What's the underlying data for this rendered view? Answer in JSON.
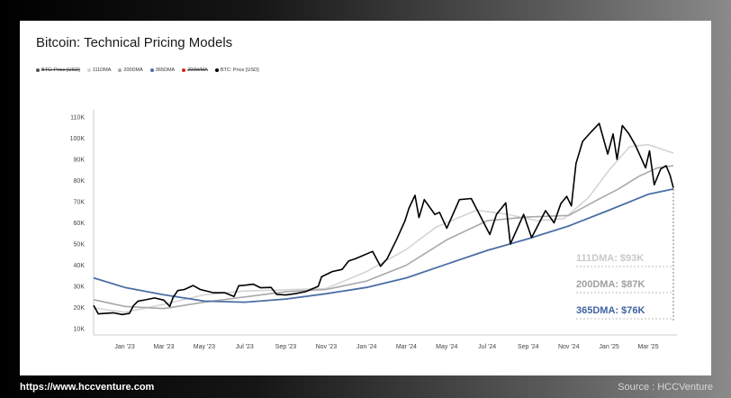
{
  "chart_data": {
    "type": "line",
    "title": "Bitcoin: Technical Pricing Models",
    "legend": [
      {
        "label": "BTC: Price [USD]",
        "color": "#555555",
        "struck": true
      },
      {
        "label": "111DMA",
        "color": "#d4d4d4",
        "struck": false
      },
      {
        "label": "200DMA",
        "color": "#a8a8a8",
        "struck": false
      },
      {
        "label": "365DMA",
        "color": "#4a6fa5",
        "struck": false
      },
      {
        "label": "200WMA",
        "color": "#e02020",
        "struck": true
      },
      {
        "label": "BTC: Price [USD]",
        "color": "#000000",
        "struck": false
      }
    ],
    "y_ticks": [
      "10K",
      "20K",
      "30K",
      "40K",
      "50K",
      "60K",
      "70K",
      "80K",
      "90K",
      "100K",
      "110K"
    ],
    "x_ticks": [
      "Jan '23",
      "Mar '23",
      "May '23",
      "Jul '23",
      "Sep '23",
      "Nov '23",
      "Jan '24",
      "Mar '24",
      "May '24",
      "Jul '24",
      "Sep '24",
      "Nov '24",
      "Jan '25",
      "Mar '25"
    ],
    "ylim": [
      10000,
      110000
    ],
    "xlim": [
      "2022-11-15",
      "2025-04-08"
    ],
    "grid": false,
    "legend_position": "top-left",
    "series": [
      {
        "name": "BTC: Price [USD]",
        "color": "#000000",
        "width": 1.6,
        "points": [
          [
            "2022-11-15",
            21000
          ],
          [
            "2022-11-22",
            17000
          ],
          [
            "2022-12-01",
            17200
          ],
          [
            "2022-12-15",
            17500
          ],
          [
            "2022-12-28",
            16700
          ],
          [
            "2023-01-08",
            17200
          ],
          [
            "2023-01-14",
            20800
          ],
          [
            "2023-01-21",
            23000
          ],
          [
            "2023-02-01",
            23600
          ],
          [
            "2023-02-15",
            24500
          ],
          [
            "2023-03-01",
            23500
          ],
          [
            "2023-03-10",
            20500
          ],
          [
            "2023-03-15",
            24800
          ],
          [
            "2023-03-22",
            28000
          ],
          [
            "2023-04-01",
            28500
          ],
          [
            "2023-04-14",
            30400
          ],
          [
            "2023-04-25",
            28500
          ],
          [
            "2023-05-15",
            27000
          ],
          [
            "2023-06-01",
            27000
          ],
          [
            "2023-06-15",
            25200
          ],
          [
            "2023-06-22",
            30300
          ],
          [
            "2023-07-01",
            30500
          ],
          [
            "2023-07-14",
            31000
          ],
          [
            "2023-07-25",
            29300
          ],
          [
            "2023-08-10",
            29500
          ],
          [
            "2023-08-18",
            26200
          ],
          [
            "2023-09-01",
            25900
          ],
          [
            "2023-09-15",
            26500
          ],
          [
            "2023-10-01",
            27500
          ],
          [
            "2023-10-20",
            30000
          ],
          [
            "2023-10-25",
            34500
          ],
          [
            "2023-11-10",
            37000
          ],
          [
            "2023-11-25",
            38000
          ],
          [
            "2023-12-05",
            42000
          ],
          [
            "2023-12-15",
            43000
          ],
          [
            "2024-01-10",
            46500
          ],
          [
            "2024-01-22",
            39500
          ],
          [
            "2024-02-01",
            43000
          ],
          [
            "2024-02-15",
            52000
          ],
          [
            "2024-02-28",
            61000
          ],
          [
            "2024-03-05",
            67000
          ],
          [
            "2024-03-14",
            73000
          ],
          [
            "2024-03-20",
            62500
          ],
          [
            "2024-03-28",
            71000
          ],
          [
            "2024-04-13",
            64000
          ],
          [
            "2024-04-20",
            65000
          ],
          [
            "2024-05-01",
            57500
          ],
          [
            "2024-05-20",
            71000
          ],
          [
            "2024-06-07",
            71500
          ],
          [
            "2024-06-25",
            60500
          ],
          [
            "2024-07-05",
            54500
          ],
          [
            "2024-07-15",
            64000
          ],
          [
            "2024-07-29",
            69500
          ],
          [
            "2024-08-05",
            50000
          ],
          [
            "2024-08-25",
            64000
          ],
          [
            "2024-09-06",
            53000
          ],
          [
            "2024-09-27",
            65800
          ],
          [
            "2024-10-10",
            60000
          ],
          [
            "2024-10-20",
            69000
          ],
          [
            "2024-10-29",
            72500
          ],
          [
            "2024-11-05",
            68000
          ],
          [
            "2024-11-12",
            88000
          ],
          [
            "2024-11-22",
            98500
          ],
          [
            "2024-12-05",
            103000
          ],
          [
            "2024-12-17",
            107000
          ],
          [
            "2024-12-30",
            92500
          ],
          [
            "2025-01-07",
            102000
          ],
          [
            "2025-01-13",
            90000
          ],
          [
            "2025-01-21",
            106000
          ],
          [
            "2025-01-31",
            102000
          ],
          [
            "2025-02-10",
            96500
          ],
          [
            "2025-02-25",
            86000
          ],
          [
            "2025-03-03",
            94000
          ],
          [
            "2025-03-10",
            78000
          ],
          [
            "2025-03-20",
            85500
          ],
          [
            "2025-03-28",
            87000
          ],
          [
            "2025-04-03",
            82500
          ],
          [
            "2025-04-08",
            76500
          ]
        ]
      },
      {
        "name": "111DMA",
        "color": "#d4d4d4",
        "width": 1.6,
        "points": [
          [
            "2022-11-15",
            19800
          ],
          [
            "2023-01-01",
            17800
          ],
          [
            "2023-03-01",
            21500
          ],
          [
            "2023-05-01",
            26000
          ],
          [
            "2023-07-01",
            27800
          ],
          [
            "2023-09-01",
            28400
          ],
          [
            "2023-11-01",
            29000
          ],
          [
            "2024-01-01",
            37000
          ],
          [
            "2024-03-01",
            47500
          ],
          [
            "2024-04-15",
            58000
          ],
          [
            "2024-06-15",
            66000
          ],
          [
            "2024-08-01",
            64000
          ],
          [
            "2024-09-15",
            61000
          ],
          [
            "2024-10-25",
            62000
          ],
          [
            "2024-12-01",
            72000
          ],
          [
            "2025-01-01",
            85000
          ],
          [
            "2025-02-01",
            96000
          ],
          [
            "2025-03-01",
            97000
          ],
          [
            "2025-04-08",
            93000
          ]
        ]
      },
      {
        "name": "200DMA",
        "color": "#a8a8a8",
        "width": 1.6,
        "points": [
          [
            "2022-11-15",
            23700
          ],
          [
            "2023-01-01",
            20500
          ],
          [
            "2023-03-01",
            19500
          ],
          [
            "2023-05-01",
            22500
          ],
          [
            "2023-07-01",
            25000
          ],
          [
            "2023-09-01",
            27500
          ],
          [
            "2023-11-01",
            28500
          ],
          [
            "2024-01-01",
            32500
          ],
          [
            "2024-03-01",
            40000
          ],
          [
            "2024-05-01",
            52000
          ],
          [
            "2024-07-01",
            61000
          ],
          [
            "2024-09-01",
            62800
          ],
          [
            "2024-11-01",
            63500
          ],
          [
            "2024-12-15",
            71000
          ],
          [
            "2025-01-15",
            76000
          ],
          [
            "2025-02-15",
            82000
          ],
          [
            "2025-03-15",
            86000
          ],
          [
            "2025-04-08",
            87000
          ]
        ]
      },
      {
        "name": "365DMA",
        "color": "#4a6fa5",
        "width": 1.8,
        "points": [
          [
            "2022-11-15",
            34000
          ],
          [
            "2023-01-01",
            29500
          ],
          [
            "2023-03-01",
            26000
          ],
          [
            "2023-05-01",
            23000
          ],
          [
            "2023-07-01",
            22500
          ],
          [
            "2023-09-01",
            24000
          ],
          [
            "2023-11-01",
            26500
          ],
          [
            "2024-01-01",
            29500
          ],
          [
            "2024-03-01",
            34000
          ],
          [
            "2024-05-01",
            40500
          ],
          [
            "2024-07-01",
            47000
          ],
          [
            "2024-09-01",
            52500
          ],
          [
            "2024-11-01",
            58500
          ],
          [
            "2025-01-01",
            66000
          ],
          [
            "2025-03-01",
            73500
          ],
          [
            "2025-04-08",
            76000
          ]
        ]
      }
    ],
    "annotations": [
      {
        "label": "111DMA: $93K",
        "color": "#c9c9c9"
      },
      {
        "label": "200DMA: $87K",
        "color": "#a0a0a0"
      },
      {
        "label": "365DMA: $76K",
        "color": "#3f64a0"
      }
    ]
  },
  "footer": {
    "website": "https://www.hccventure.com",
    "source": "Source : HCCVenture"
  }
}
